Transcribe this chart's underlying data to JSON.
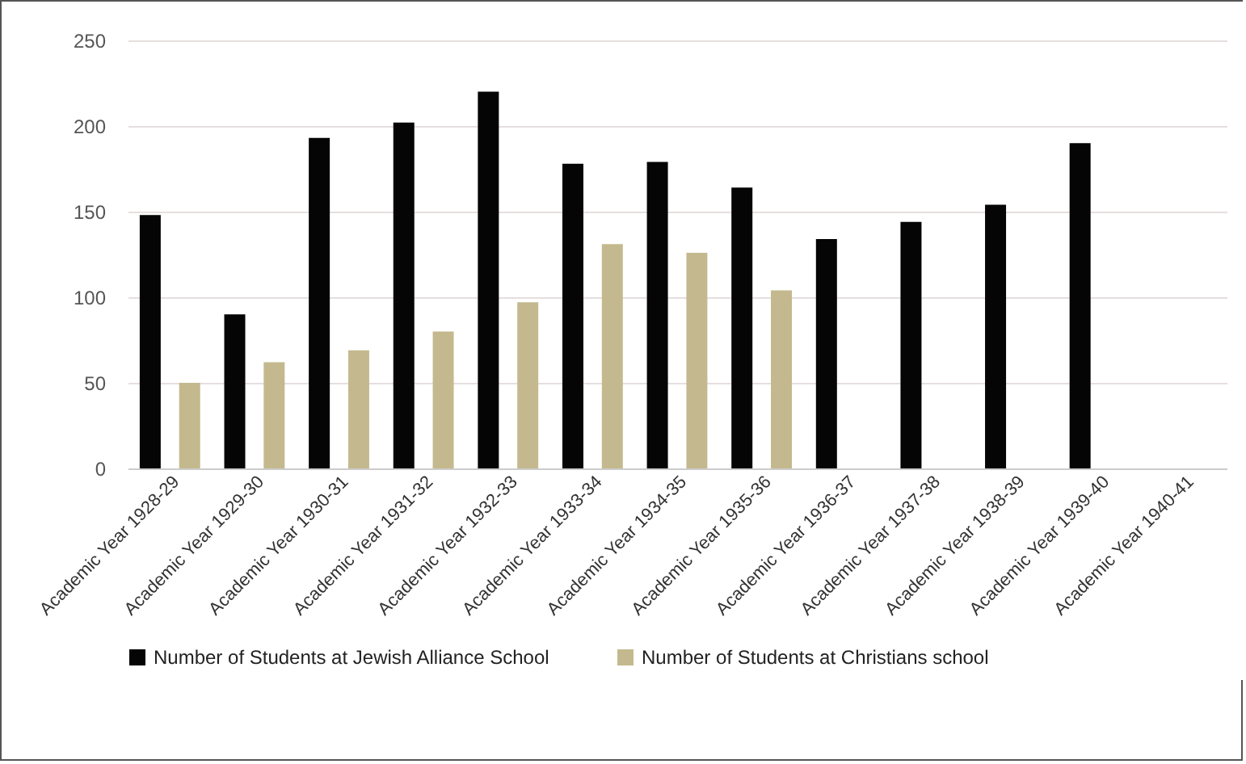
{
  "chart_data": {
    "type": "bar",
    "categories": [
      "Academic Year 1928-29",
      "Academic Year 1929-30",
      "Academic Year 1930-31",
      "Academic Year 1931-32",
      "Academic Year 1932-33",
      "Academic Year 1933-34",
      "Academic Year 1934-35",
      "Academic Year 1935-36",
      "Academic Year 1936-37",
      "Academic Year 1937-38",
      "Academic Year 1938-39",
      "Academic Year 1939-40",
      "Academic Year 1940-41"
    ],
    "series": [
      {
        "name": "Number of Students at Jewish Alliance School",
        "color": "#050505",
        "values": [
          148,
          90,
          193,
          202,
          220,
          178,
          179,
          164,
          134,
          144,
          154,
          190,
          null
        ]
      },
      {
        "name": "Number of Students at Christians school",
        "color": "#c4b98e",
        "values": [
          50,
          62,
          69,
          80,
          97,
          131,
          126,
          104,
          null,
          null,
          null,
          null,
          null
        ]
      }
    ],
    "ylim": [
      0,
      250
    ],
    "yticks": [
      0,
      50,
      100,
      150,
      200,
      250
    ],
    "grid": "y",
    "legend": "bottom"
  }
}
